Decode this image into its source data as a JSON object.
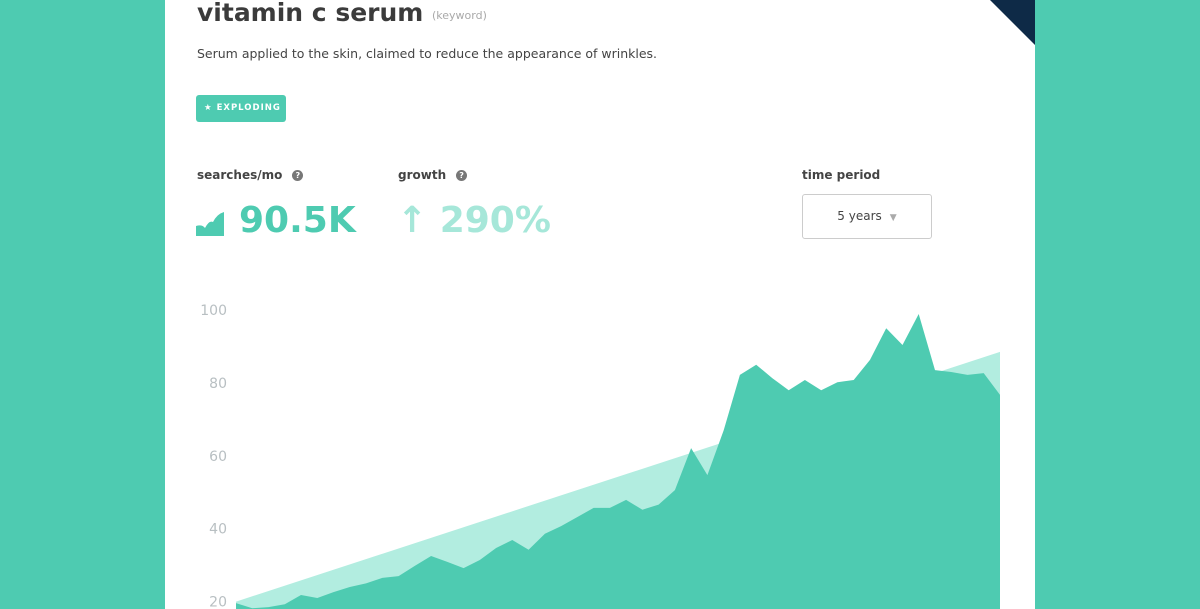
{
  "header": {
    "title": "vitamin c serum",
    "tag": "(keyword)",
    "description": "Serum applied to the skin, claimed to reduce the appearance of wrinkles.",
    "badge": "EXPLODING"
  },
  "stats": {
    "searches_label": "searches/mo",
    "searches_value": "90.5K",
    "growth_label": "growth",
    "growth_value": "290%",
    "period_label": "time period",
    "period_value": "5 years"
  },
  "chart_data": {
    "type": "area",
    "color": "#4ecbb1",
    "trend_color": "#b2ede0",
    "values": [
      19.6,
      18.2,
      18.5,
      19.3,
      21.8,
      21,
      22.6,
      24,
      25,
      26.5,
      27,
      29.8,
      32.5,
      30.9,
      29.2,
      31.4,
      34.7,
      36.9,
      34.2,
      38.6,
      40.7,
      43.2,
      45.7,
      45.7,
      47.9,
      45.2,
      46.6,
      50.6,
      62.1,
      54.7,
      67,
      82.2,
      85,
      81.3,
      78,
      80.8,
      78,
      80.2,
      80.8,
      86.3,
      95,
      90.4,
      98.9,
      83.5,
      83,
      82.2,
      82.7,
      76.7
    ],
    "trend": [
      20,
      88.5
    ],
    "ylim": [
      0,
      100
    ],
    "yticks": [
      20,
      40,
      60,
      80,
      100
    ]
  }
}
